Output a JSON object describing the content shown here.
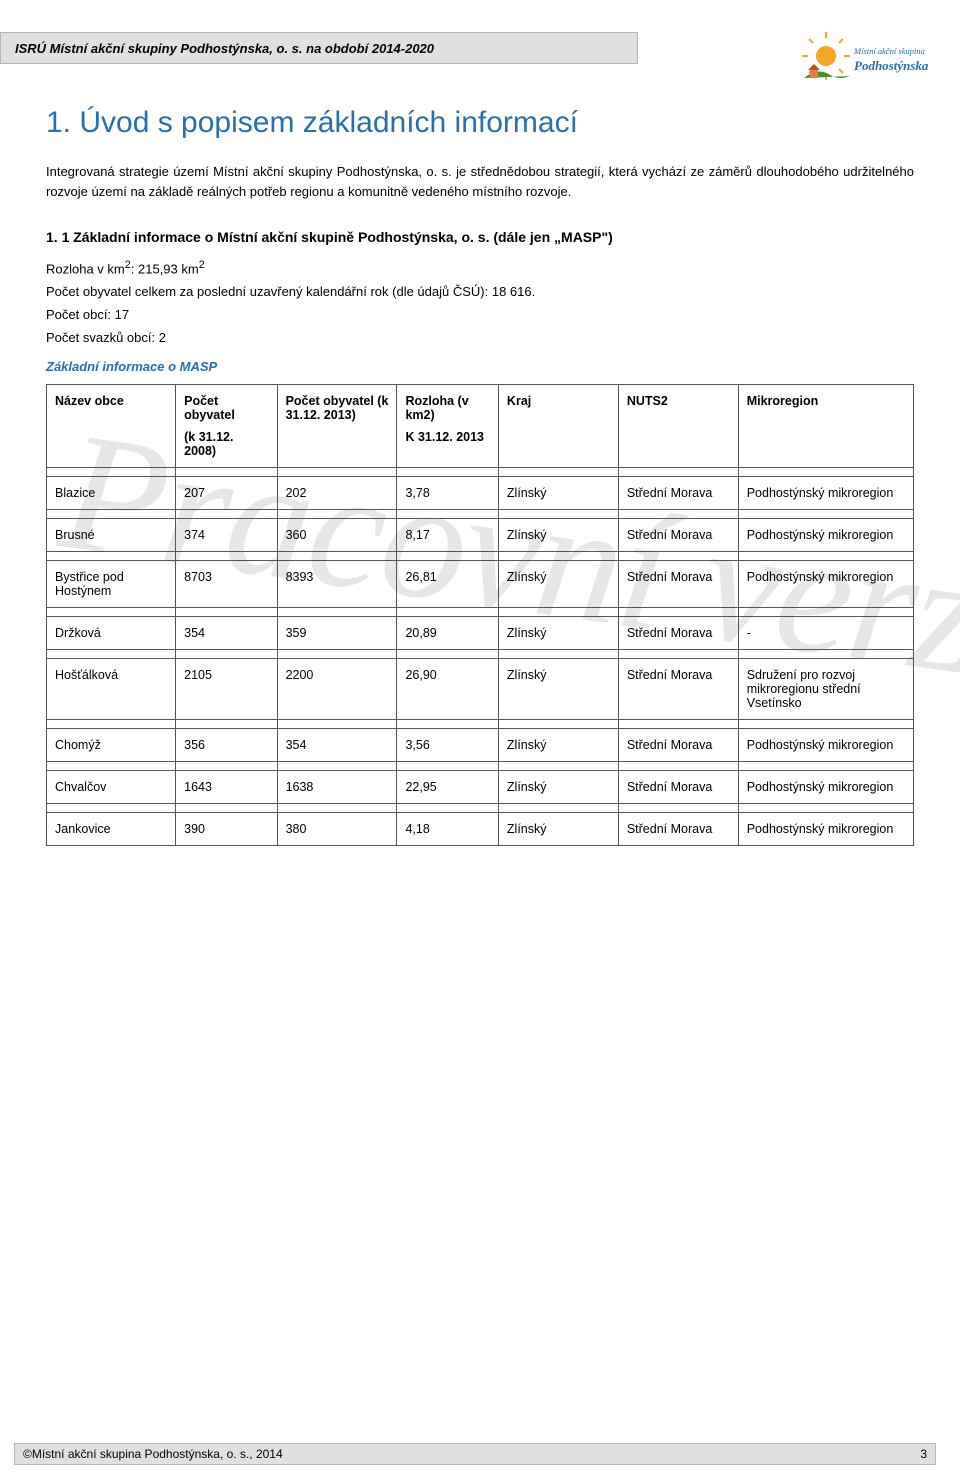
{
  "header": {
    "text": "ISRÚ Místní akční skupiny Podhostýnska, o. s. na období 2014-2020",
    "background": "#e0e0e0"
  },
  "logo": {
    "line1": "Místní akční skupina",
    "line2": "Podhostýnska",
    "colors": {
      "sun": "#f5a623",
      "green": "#4a8b2c",
      "text": "#2a6faa"
    }
  },
  "watermark": "Pracovní verze",
  "title": "1. Úvod s popisem základních informací",
  "intro": "Integrovaná strategie území Místní akční skupiny Podhostýnska, o. s. je střednědobou strategií, která vychází ze záměrů dlouhodobého udržitelného rozvoje území na základě reálných potřeb regionu a komunitně vedeného místního rozvoje.",
  "subheading": "1. 1 Základní informace o Místní akční skupině Podhostýnska, o. s. (dále jen „MASP\")",
  "stats": {
    "rozloha_label": "Rozloha v km",
    "rozloha_value": ": 215,93 km",
    "pocet_obyv": "Počet obyvatel celkem za poslední uzavřený kalendářní rok (dle údajů ČSÚ): 18 616.",
    "pocet_obci": "Počet obcí: 17",
    "pocet_svazku": "Počet svazků obcí: 2"
  },
  "table_heading": "Základní informace o MASP",
  "table": {
    "headers": {
      "nazev": "Název obce",
      "pop2008_l1": "Počet obyvatel",
      "pop2008_l2": "(k 31.12. 2008)",
      "pop2013_l1": "Počet obyvatel (k 31.12. 2013)",
      "area_l1": "Rozloha (v km2)",
      "area_l2": "K 31.12. 2013",
      "kraj": "Kraj",
      "nuts2": "NUTS2",
      "mikroregion": "Mikroregion"
    },
    "rows": [
      {
        "name": "Blazice",
        "p2008": "207",
        "p2013": "202",
        "area": "3,78",
        "kraj": "Zlínský",
        "nuts2": "Střední Morava",
        "mikro": "Podhostýnský mikroregion"
      },
      {
        "name": "Brusné",
        "p2008": "374",
        "p2013": "360",
        "area": "8,17",
        "kraj": "Zlínský",
        "nuts2": "Střední Morava",
        "mikro": "Podhostýnský mikroregion"
      },
      {
        "name": "Bystřice pod Hostýnem",
        "p2008": "8703",
        "p2013": "8393",
        "area": "26,81",
        "kraj": "Zlínský",
        "nuts2": "Střední Morava",
        "mikro": "Podhostýnský mikroregion"
      },
      {
        "name": "Držková",
        "p2008": "354",
        "p2013": "359",
        "area": "20,89",
        "kraj": "Zlínský",
        "nuts2": "Střední Morava",
        "mikro": "-"
      },
      {
        "name": "Hošťálková",
        "p2008": "2105",
        "p2013": "2200",
        "area": "26,90",
        "kraj": "Zlínský",
        "nuts2": "Střední Morava",
        "mikro": "Sdružení pro rozvoj mikroregionu střední Vsetínsko"
      },
      {
        "name": "Chomýž",
        "p2008": "356",
        "p2013": "354",
        "area": "3,56",
        "kraj": "Zlínský",
        "nuts2": "Střední Morava",
        "mikro": "Podhostýnský mikroregion"
      },
      {
        "name": "Chvalčov",
        "p2008": "1643",
        "p2013": "1638",
        "area": "22,95",
        "kraj": "Zlínský",
        "nuts2": "Střední Morava",
        "mikro": "Podhostýnský mikroregion"
      },
      {
        "name": "Jankovice",
        "p2008": "390",
        "p2013": "380",
        "area": "4,18",
        "kraj": "Zlínský",
        "nuts2": "Střední Morava",
        "mikro": "Podhostýnský mikroregion"
      }
    ]
  },
  "footer": {
    "text": "©Místní akční skupina Podhostýnska, o. s., 2014",
    "page": "3"
  }
}
